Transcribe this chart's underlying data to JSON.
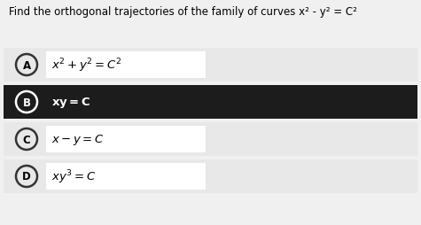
{
  "title": "Find the orthogonal trajectories of the family of curves x² - y² = C²",
  "options": [
    {
      "label": "A",
      "text": "$x^2+y^2=C^2$",
      "selected": false
    },
    {
      "label": "B",
      "text": "$\\mathbf{xy = C}$",
      "selected": true
    },
    {
      "label": "C",
      "text": "$x - y = C$",
      "selected": false
    },
    {
      "label": "D",
      "text": "$xy^3 = C$",
      "selected": false
    }
  ],
  "fig_bg": "#f0f0f0",
  "row_bg": "#e8e8e8",
  "selected_bg": "#1c1c1c",
  "formula_box_bg": "#ffffff",
  "title_fontsize": 8.5,
  "option_fontsize": 9.5,
  "label_fontsize": 8.5
}
